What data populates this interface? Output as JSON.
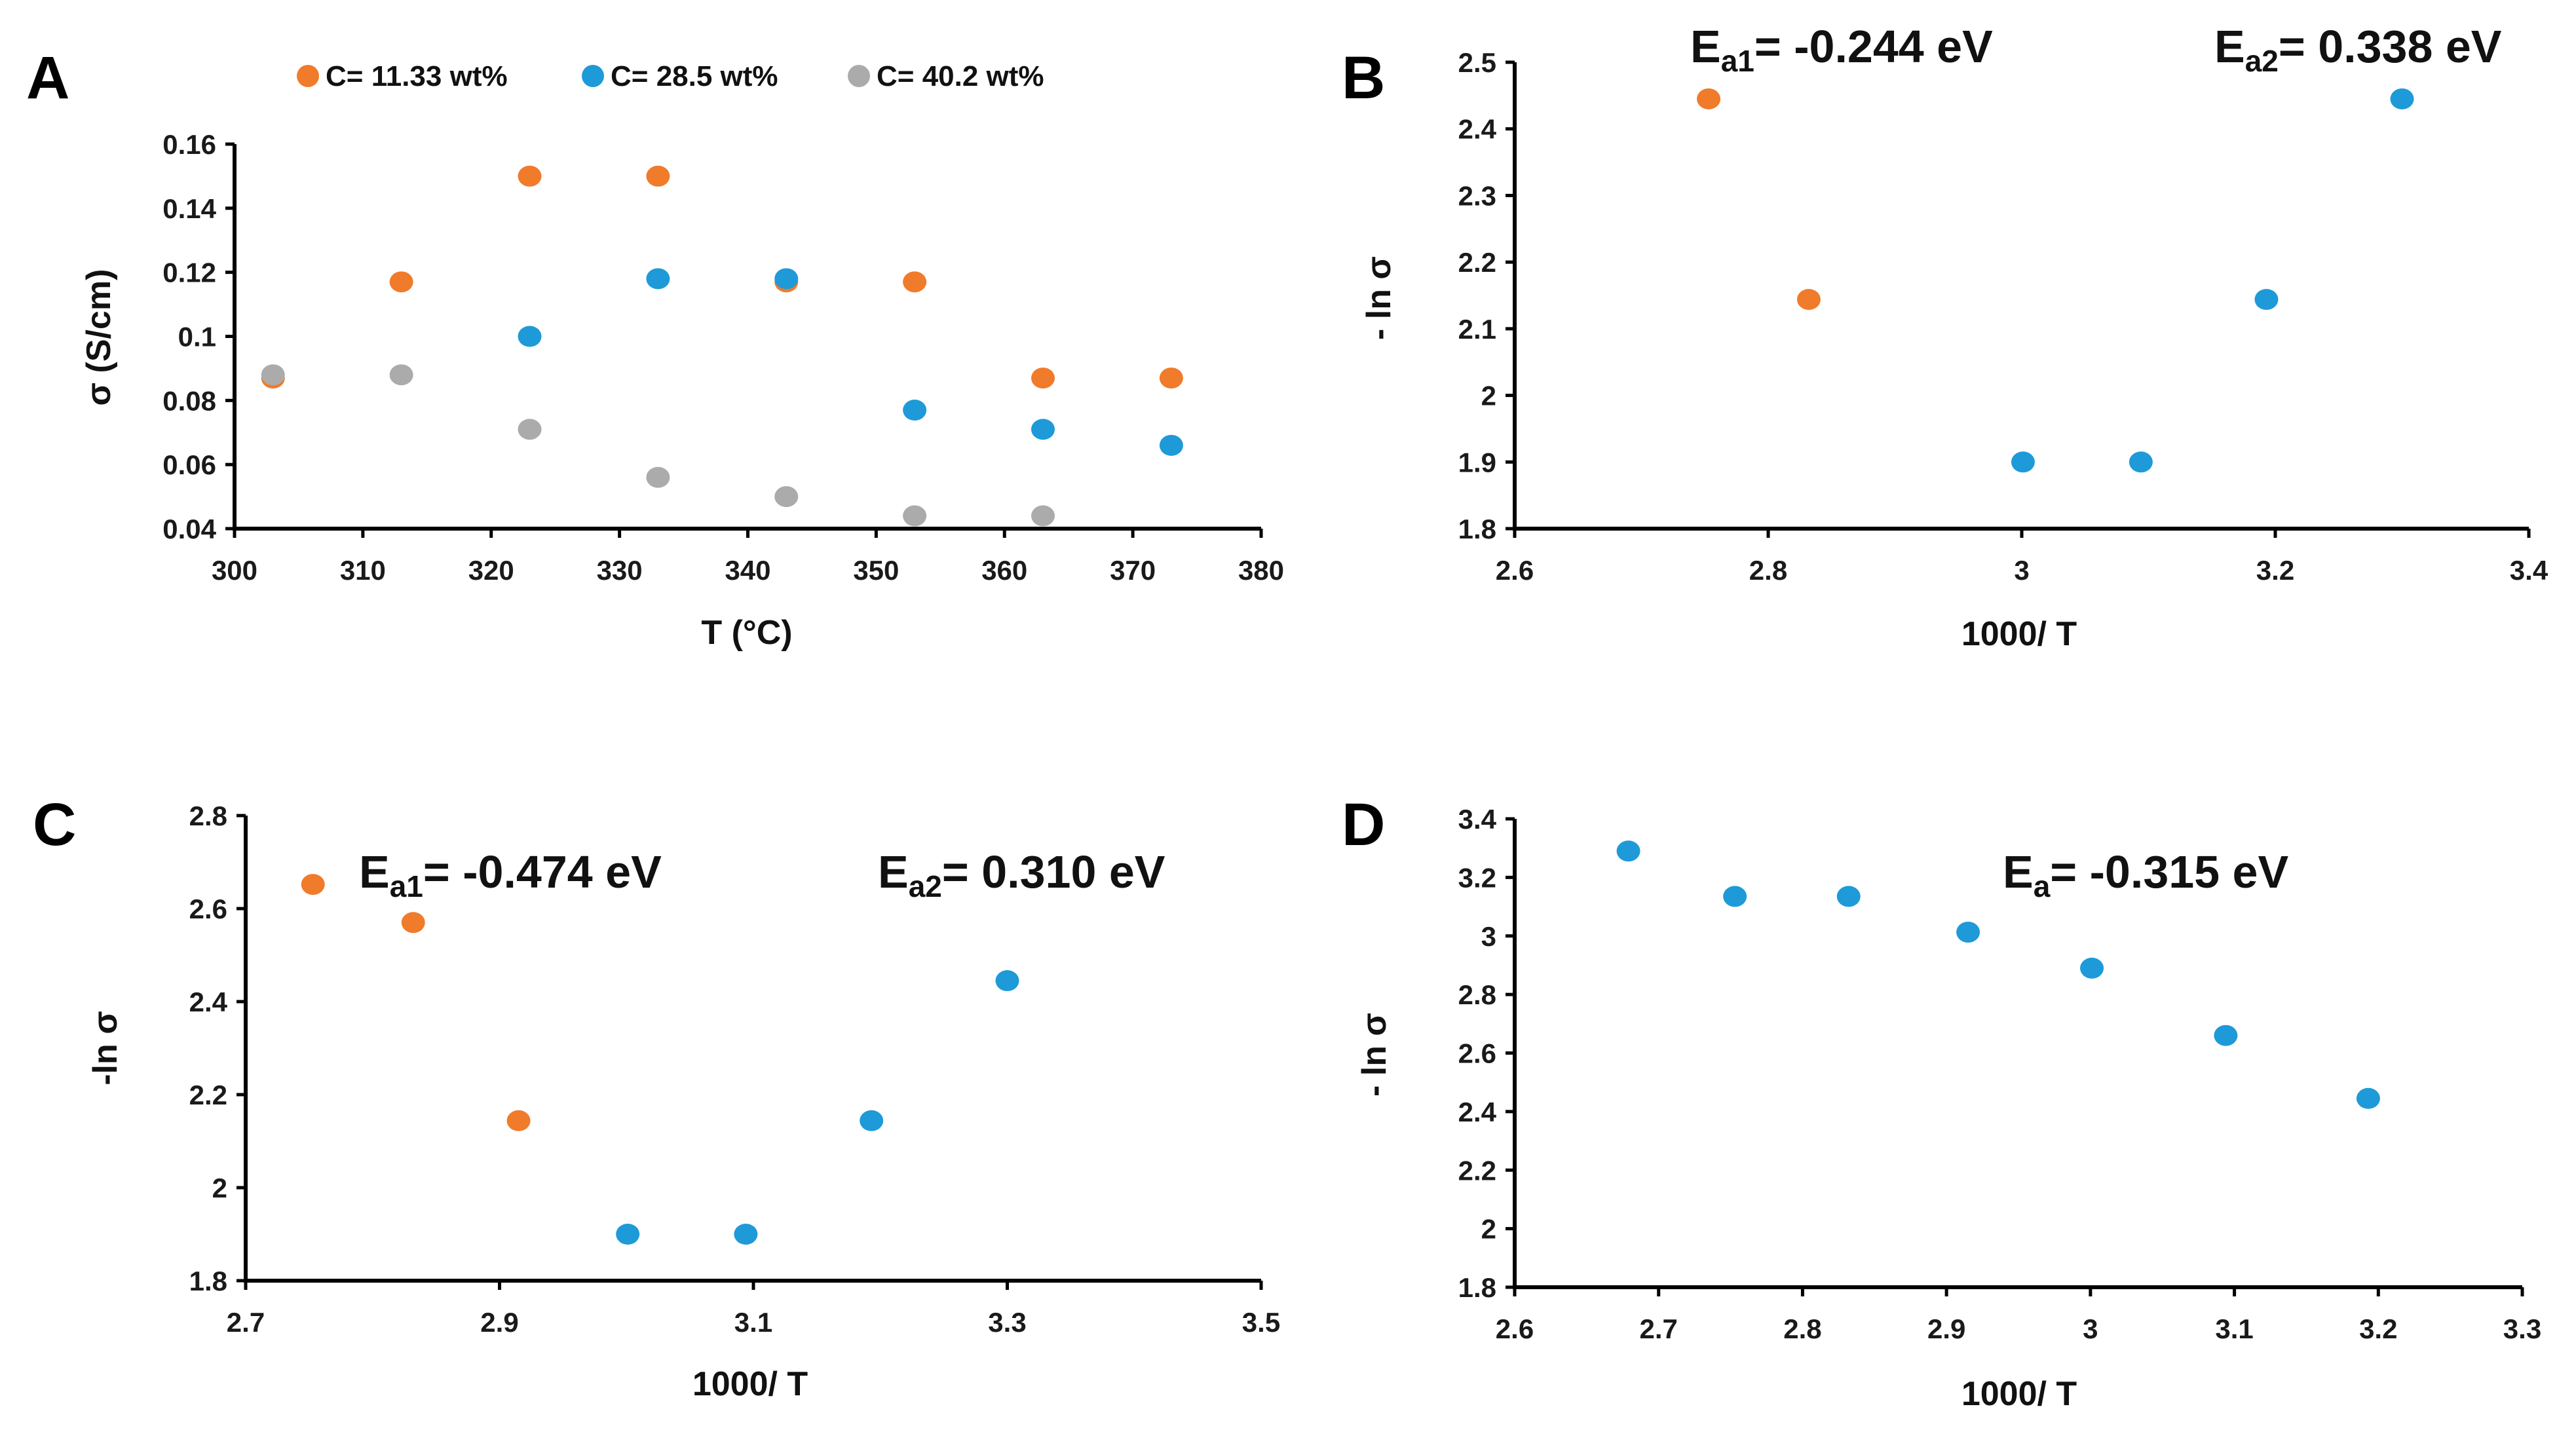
{
  "chart_data": [
    {
      "panel": "A",
      "type": "scatter",
      "xlabel": "T (°C)",
      "ylabel": "σ (S/cm)",
      "xlim": [
        300,
        380
      ],
      "ylim": [
        0.04,
        0.16
      ],
      "xticks": [
        "300",
        "310",
        "320",
        "330",
        "340",
        "350",
        "360",
        "370",
        "380"
      ],
      "yticks": [
        "0.04",
        "0.06",
        "0.08",
        "0.1",
        "0.12",
        "0.14",
        "0.16"
      ],
      "legend": [
        "C= 11.33 wt%",
        "C= 28.5 wt%",
        "C= 40.2 wt%"
      ],
      "legend_position": "top",
      "series": [
        {
          "name": "C= 11.33 wt%",
          "color": "#F07B2B",
          "points": [
            [
              303,
              0.087
            ],
            [
              313,
              0.117
            ],
            [
              323,
              0.15
            ],
            [
              333,
              0.15
            ],
            [
              343,
              0.117
            ],
            [
              353,
              0.117
            ],
            [
              363,
              0.087
            ],
            [
              373,
              0.087
            ]
          ]
        },
        {
          "name": "C= 28.5 wt%",
          "color": "#1E9AD8",
          "points": [
            [
              333,
              0.118
            ],
            [
              343,
              0.118
            ],
            [
              323,
              0.1
            ],
            [
              353,
              0.077
            ],
            [
              363,
              0.071
            ],
            [
              373,
              0.066
            ]
          ]
        },
        {
          "name": "C= 40.2 wt%",
          "color": "#ABABAB",
          "points": [
            [
              303,
              0.088
            ],
            [
              313,
              0.088
            ],
            [
              323,
              0.071
            ],
            [
              333,
              0.056
            ],
            [
              343,
              0.05
            ],
            [
              353,
              0.044
            ],
            [
              363,
              0.044
            ]
          ]
        }
      ]
    },
    {
      "panel": "B",
      "type": "scatter",
      "xlabel": "1000/ T",
      "ylabel": "- ln σ",
      "xlim": [
        2.6,
        3.4
      ],
      "ylim": [
        1.8,
        2.5
      ],
      "xticks": [
        "2.6",
        "2.8",
        "3",
        "3.2",
        "3.4"
      ],
      "yticks": [
        "1.8",
        "1.9",
        "2",
        "2.1",
        "2.2",
        "2.3",
        "2.4",
        "2.5"
      ],
      "annotations": [
        {
          "main": "E",
          "sub": "a1",
          "rest": "= -0.244 eV"
        },
        {
          "main": "E",
          "sub": "a2",
          "rest": "= 0.338 eV"
        }
      ],
      "series": [
        {
          "name": "Ea1",
          "color": "#F07B2B",
          "points": [
            [
              2.753,
              2.445
            ],
            [
              2.832,
              2.144
            ]
          ]
        },
        {
          "name": "Ea2",
          "color": "#1E9AD8",
          "points": [
            [
              3.001,
              1.9
            ],
            [
              3.094,
              1.9
            ],
            [
              3.193,
              2.144
            ],
            [
              3.3,
              2.445
            ]
          ]
        }
      ]
    },
    {
      "panel": "C",
      "type": "scatter",
      "xlabel": "1000/ T",
      "ylabel": "-ln σ",
      "xlim": [
        2.7,
        3.5
      ],
      "ylim": [
        1.8,
        2.8
      ],
      "xticks": [
        "2.7",
        "2.9",
        "3.1",
        "3.3",
        "3.5"
      ],
      "yticks": [
        "1.8",
        "2",
        "2.2",
        "2.4",
        "2.6",
        "2.8"
      ],
      "annotations": [
        {
          "main": "E",
          "sub": "a1",
          "rest": "= -0.474 eV"
        },
        {
          "main": "E",
          "sub": "a2",
          "rest": "= 0.310 eV"
        }
      ],
      "series": [
        {
          "name": "Ea1",
          "color": "#F07B2B",
          "points": [
            [
              2.753,
              2.652
            ],
            [
              2.832,
              2.57
            ],
            [
              2.915,
              2.144
            ]
          ]
        },
        {
          "name": "Ea2",
          "color": "#1E9AD8",
          "points": [
            [
              3.001,
              1.9
            ],
            [
              3.094,
              1.9
            ],
            [
              3.193,
              2.144
            ],
            [
              3.3,
              2.445
            ]
          ]
        }
      ]
    },
    {
      "panel": "D",
      "type": "scatter",
      "xlabel": "1000/ T",
      "ylabel": "- ln σ",
      "xlim": [
        2.6,
        3.3
      ],
      "ylim": [
        1.8,
        3.4
      ],
      "xticks": [
        "2.6",
        "2.7",
        "2.8",
        "2.9",
        "3",
        "3.1",
        "3.2",
        "3.3"
      ],
      "yticks": [
        "1.8",
        "2",
        "2.2",
        "2.4",
        "2.6",
        "2.8",
        "3",
        "3.2",
        "3.4"
      ],
      "annotations": [
        {
          "main": "E",
          "sub": "a",
          "rest": "= -0.315 eV"
        }
      ],
      "series": [
        {
          "name": "Ea",
          "color": "#1E9AD8",
          "points": [
            [
              2.679,
              3.29
            ],
            [
              2.753,
              3.135
            ],
            [
              2.832,
              3.135
            ],
            [
              2.915,
              3.013
            ],
            [
              3.001,
              2.89
            ],
            [
              3.094,
              2.66
            ],
            [
              3.193,
              2.445
            ]
          ]
        }
      ]
    }
  ]
}
